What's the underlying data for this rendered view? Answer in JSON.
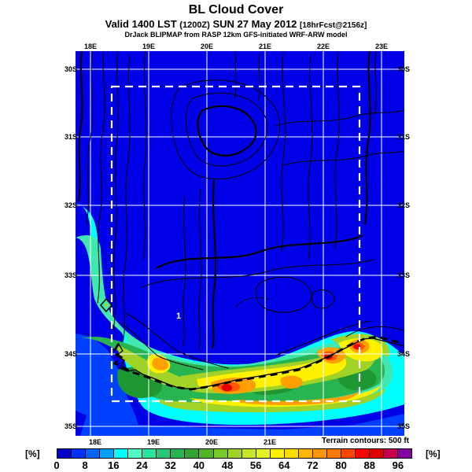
{
  "title": "BL Cloud Cover",
  "subtitle": {
    "valid": "Valid 1400 LST",
    "paren": "(1200Z)",
    "date": "SUN 27 May 2012",
    "bracket": "[18hrFcst@2156z]"
  },
  "credit": "DrJack BLIPMAP from RASP 12km GFS-initiated WRF-ARW model",
  "map": {
    "top_lon_labels": [
      "18E",
      "19E",
      "20E",
      "21E",
      "22E",
      "23E"
    ],
    "bottom_lon_labels": [
      "18E",
      "19E",
      "20E",
      "21E"
    ],
    "left_lat_labels": [
      "30S",
      "31S",
      "32S",
      "33S",
      "34S",
      "35S"
    ],
    "right_lat_labels": [
      "30S",
      "31S",
      "32S",
      "33S",
      "34S",
      "35S"
    ],
    "contour_label": "1",
    "terrain_note": "Terrain contours: 500 ft",
    "domain_box": "dashed-white-rectangle",
    "background_color": "#0000e6"
  },
  "colorbar": {
    "unit_label": "[%]",
    "tick_labels": [
      "0",
      "8",
      "16",
      "24",
      "32",
      "40",
      "48",
      "56",
      "64",
      "72",
      "80",
      "88",
      "96"
    ],
    "segment_span": 4,
    "range": [
      0,
      100
    ],
    "colors": [
      "#0000c8",
      "#0032ff",
      "#0064ff",
      "#00a0ff",
      "#00ffff",
      "#50ffc8",
      "#28e6a0",
      "#28c878",
      "#28b450",
      "#32a432",
      "#50b428",
      "#78c828",
      "#a0d228",
      "#c8e628",
      "#e6f028",
      "#fff000",
      "#ffdc00",
      "#ffb400",
      "#ff9600",
      "#ff7800",
      "#ff4600",
      "#ff0000",
      "#dc0000",
      "#c80050",
      "#8000a0"
    ]
  }
}
